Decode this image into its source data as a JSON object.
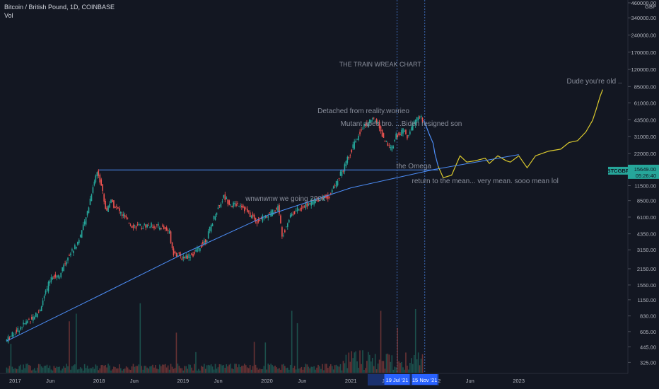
{
  "header": {
    "title": "Bitcoin / British Pound, 1D, COINBASE",
    "sub": "Vol"
  },
  "chart_data": {
    "type": "line",
    "title": "THE TRAIN WREAK CHART",
    "symbol": "BTCGBP",
    "price_label": "15649.00",
    "countdown_label": "05:26:40",
    "currency_label": "GBP",
    "y_scale": "log",
    "ylim": [
      300,
      460000
    ],
    "y_ticks": [
      "460000.00",
      "340000.00",
      "240000.00",
      "170000.00",
      "120000.00",
      "85000.00",
      "61000.00",
      "43500.00",
      "31000.00",
      "22000.00",
      "15500.00",
      "11500.00",
      "8500.00",
      "6100.00",
      "4350.00",
      "3150.00",
      "2150.00",
      "1550.00",
      "1150.00",
      "830.00",
      "605.00",
      "445.00",
      "325.00"
    ],
    "x_ticks": [
      "2017",
      "Jun",
      "2018",
      "Jun",
      "2019",
      "Jun",
      "2020",
      "Jun",
      "2021",
      "Jun",
      "2022",
      "Jun",
      "2023"
    ],
    "highlight_dates": [
      "19 Jul '21",
      "15 Nov '21"
    ],
    "annotations": [
      "Dude you're old ..",
      "Detached from reality.worrieo",
      "Mutant apes bro. ...Biden resigned son",
      "the Omega",
      "return to the mean... very mean. sooo mean lol",
      "wnwnwnw we going 200k"
    ],
    "series": [
      {
        "kind": "price",
        "color": "#26a69a",
        "points": [
          [
            2016.9,
            500
          ],
          [
            2017.1,
            680
          ],
          [
            2017.3,
            900
          ],
          [
            2017.45,
            1850
          ],
          [
            2017.55,
            1900
          ],
          [
            2017.65,
            2800
          ],
          [
            2017.75,
            3500
          ],
          [
            2017.85,
            5500
          ],
          [
            2017.95,
            12000
          ],
          [
            2018.0,
            15800
          ],
          [
            2018.05,
            11000
          ],
          [
            2018.1,
            6800
          ],
          [
            2018.15,
            8500
          ],
          [
            2018.3,
            6300
          ],
          [
            2018.4,
            5200
          ],
          [
            2018.5,
            5000
          ],
          [
            2018.6,
            5200
          ],
          [
            2018.75,
            5000
          ],
          [
            2018.85,
            4600
          ],
          [
            2018.9,
            3000
          ],
          [
            2019.0,
            2700
          ],
          [
            2019.15,
            2900
          ],
          [
            2019.3,
            4000
          ],
          [
            2019.4,
            6500
          ],
          [
            2019.5,
            9200
          ],
          [
            2019.6,
            7800
          ],
          [
            2019.7,
            8000
          ],
          [
            2019.8,
            6500
          ],
          [
            2019.9,
            5600
          ],
          [
            2020.05,
            6500
          ],
          [
            2020.15,
            7500
          ],
          [
            2020.2,
            4200
          ],
          [
            2020.3,
            6500
          ],
          [
            2020.4,
            7200
          ],
          [
            2020.55,
            8200
          ],
          [
            2020.65,
            9000
          ],
          [
            2020.75,
            9200
          ],
          [
            2020.85,
            12500
          ],
          [
            2020.95,
            17500
          ],
          [
            2021.0,
            22000
          ],
          [
            2021.05,
            26000
          ],
          [
            2021.15,
            38000
          ],
          [
            2021.25,
            42000
          ],
          [
            2021.3,
            44000
          ],
          [
            2021.35,
            40000
          ],
          [
            2021.4,
            30000
          ],
          [
            2021.45,
            26000
          ],
          [
            2021.5,
            24000
          ],
          [
            2021.55,
            31000
          ],
          [
            2021.6,
            33000
          ],
          [
            2021.65,
            35000
          ],
          [
            2021.7,
            30000
          ],
          [
            2021.75,
            39000
          ],
          [
            2021.8,
            44000
          ],
          [
            2021.85,
            46000
          ],
          [
            2021.87,
            43000
          ]
        ]
      },
      {
        "kind": "projection",
        "color": "#4c8df6",
        "points": [
          [
            2021.87,
            43000
          ],
          [
            2021.93,
            33000
          ],
          [
            2021.98,
            27000
          ],
          [
            2022.0,
            22000
          ],
          [
            2022.04,
            17000
          ]
        ]
      },
      {
        "kind": "forecast",
        "color": "#dccb2e",
        "points": [
          [
            2022.04,
            17000
          ],
          [
            2022.1,
            13500
          ],
          [
            2022.2,
            14200
          ],
          [
            2022.3,
            21000
          ],
          [
            2022.38,
            18500
          ],
          [
            2022.48,
            19000
          ],
          [
            2022.6,
            20000
          ],
          [
            2022.65,
            18000
          ],
          [
            2022.75,
            21000
          ],
          [
            2022.85,
            19000
          ],
          [
            2022.9,
            18500
          ],
          [
            2023.0,
            21000
          ],
          [
            2023.1,
            16500
          ],
          [
            2023.2,
            21000
          ],
          [
            2023.35,
            23000
          ],
          [
            2023.5,
            24000
          ],
          [
            2023.6,
            27500
          ],
          [
            2023.7,
            28500
          ],
          [
            2023.8,
            34000
          ],
          [
            2023.88,
            43000
          ],
          [
            2023.92,
            53000
          ],
          [
            2023.97,
            70000
          ],
          [
            2024.0,
            80000
          ]
        ]
      }
    ],
    "lines": [
      {
        "kind": "horizontal",
        "color": "#4c8df6",
        "value": 15800,
        "from": 2018.0,
        "to": 2022.04
      },
      {
        "kind": "trend",
        "color": "#4c8df6",
        "points": [
          [
            2016.9,
            500
          ],
          [
            2018.0,
            1250
          ],
          [
            2019.0,
            2900
          ],
          [
            2020.0,
            6300
          ],
          [
            2021.0,
            11000
          ],
          [
            2022.0,
            16000
          ],
          [
            2023.0,
            21500
          ]
        ]
      }
    ]
  }
}
